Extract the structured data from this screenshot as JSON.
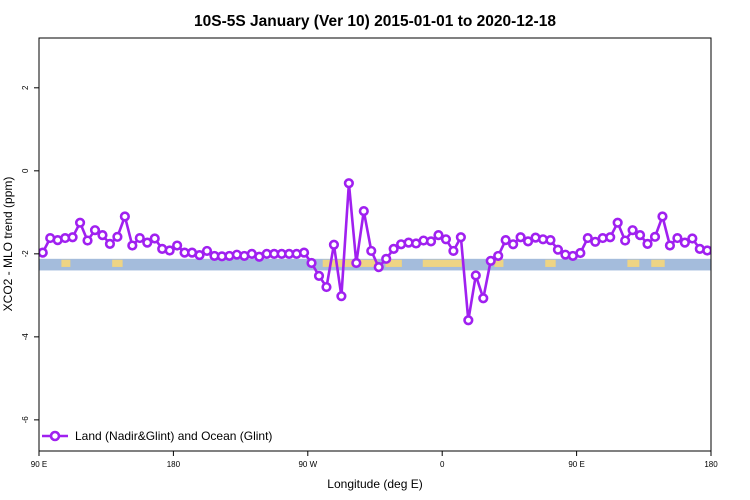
{
  "chart_data": {
    "type": "line",
    "title": "10S-5S January (Ver 10)   2015-01-01 to 2020-12-18",
    "xlabel": "Longitude (deg E)",
    "ylabel": "XCO2 - MLO trend (ppm)",
    "xlim": [
      90,
      540
    ],
    "ylim": [
      -6.75,
      3.2
    ],
    "x_ticks": [
      {
        "value": 90,
        "label": "90 E"
      },
      {
        "value": 180,
        "label": "180"
      },
      {
        "value": 270,
        "label": "90 W"
      },
      {
        "value": 360,
        "label": "0"
      },
      {
        "value": 450,
        "label": "90 E"
      },
      {
        "value": 540,
        "label": "180"
      }
    ],
    "y_ticks": [
      {
        "value": 2,
        "label": "2"
      },
      {
        "value": 0,
        "label": "0"
      },
      {
        "value": -2,
        "label": "-2"
      },
      {
        "value": -4,
        "label": "-4"
      },
      {
        "value": -6,
        "label": "-6"
      }
    ],
    "grid": false,
    "legend_position": "bottom-left",
    "land_mask_band": {
      "y_top": -2.12,
      "y_bottom": -2.4,
      "ocean_color": "#a4bcdc",
      "land_color": "#f6d67a"
    },
    "land_ranges": [
      [
        105,
        111
      ],
      [
        139,
        146
      ],
      [
        280,
        317
      ],
      [
        322,
        333
      ],
      [
        347,
        373
      ],
      [
        395,
        401
      ],
      [
        429,
        436
      ],
      [
        484,
        492
      ],
      [
        500,
        509
      ]
    ],
    "series": [
      {
        "name": "Land (Nadir&Glint) and Ocean (Glint)",
        "color": "#a020f0",
        "x": [
          92.5,
          97.5,
          102.5,
          107.5,
          112.5,
          117.5,
          122.5,
          127.5,
          132.5,
          137.5,
          142.5,
          147.5,
          152.5,
          157.5,
          162.5,
          167.5,
          172.5,
          177.5,
          182.5,
          187.5,
          192.5,
          197.5,
          202.5,
          207.5,
          212.5,
          217.5,
          222.5,
          227.5,
          232.5,
          237.5,
          242.5,
          247.5,
          252.5,
          257.5,
          262.5,
          267.5,
          272.5,
          277.5,
          282.5,
          287.5,
          292.5,
          297.5,
          302.5,
          307.5,
          312.5,
          317.5,
          322.5,
          327.5,
          332.5,
          337.5,
          342.5,
          347.5,
          352.5,
          357.5,
          362.5,
          367.5,
          372.5,
          377.5,
          382.5,
          387.5,
          392.5,
          397.5,
          402.5,
          407.5,
          412.5,
          417.5,
          422.5,
          427.5,
          432.5,
          437.5,
          442.5,
          447.5,
          452.5,
          457.5,
          462.5,
          467.5,
          472.5,
          477.5,
          482.5,
          487.5,
          492.5,
          497.5,
          502.5,
          507.5,
          512.5,
          517.5,
          522.5,
          527.5,
          532.5,
          537.5
        ],
        "y": [
          -1.97,
          -1.62,
          -1.67,
          -1.62,
          -1.6,
          -1.25,
          -1.68,
          -1.43,
          -1.55,
          -1.76,
          -1.59,
          -1.1,
          -1.8,
          -1.62,
          -1.73,
          -1.63,
          -1.88,
          -1.92,
          -1.8,
          -1.97,
          -1.97,
          -2.03,
          -1.93,
          -2.05,
          -2.06,
          -2.05,
          -2.02,
          -2.05,
          -2.0,
          -2.07,
          -2.0,
          -2.0,
          -2.0,
          -2.0,
          -2.0,
          -1.97,
          -2.22,
          -2.53,
          -2.8,
          -1.78,
          -3.02,
          -0.3,
          -2.22,
          -0.97,
          -1.93,
          -2.32,
          -2.12,
          -1.88,
          -1.77,
          -1.73,
          -1.75,
          -1.68,
          -1.7,
          -1.55,
          -1.65,
          -1.93,
          -1.6,
          -3.6,
          -2.52,
          -3.07,
          -2.17,
          -2.05,
          -1.67,
          -1.77,
          -1.6,
          -1.7,
          -1.61,
          -1.65,
          -1.67,
          -1.9,
          -2.02,
          -2.05,
          -1.98,
          -1.62,
          -1.71,
          -1.62,
          -1.6,
          -1.25,
          -1.68,
          -1.43,
          -1.55,
          -1.76,
          -1.59,
          -1.1,
          -1.8,
          -1.62,
          -1.73,
          -1.63,
          -1.88,
          -1.92
        ]
      }
    ]
  }
}
